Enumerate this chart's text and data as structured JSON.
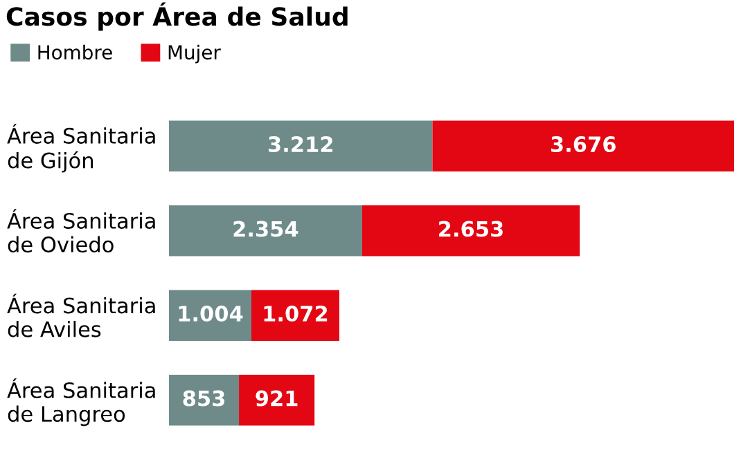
{
  "chart_data": {
    "type": "bar",
    "orientation": "horizontal",
    "stacked": true,
    "title": "Casos por Área de Salud",
    "categories": [
      "Área Sanitaria\nde Gijón",
      "Área Sanitaria\nde Oviedo",
      "Área Sanitaria\nde Aviles",
      "Área Sanitaria\nde Langreo"
    ],
    "series": [
      {
        "name": "Hombre",
        "color": "#6e8b89",
        "values": [
          3212,
          2354,
          1004,
          853
        ],
        "value_labels": [
          "3.212",
          "2.354",
          "1.004",
          "853"
        ]
      },
      {
        "name": "Mujer",
        "color": "#e30613",
        "values": [
          3676,
          2653,
          1072,
          921
        ],
        "value_labels": [
          "3.676",
          "2.653",
          "1.072",
          "921"
        ]
      }
    ],
    "legend": "top left"
  }
}
